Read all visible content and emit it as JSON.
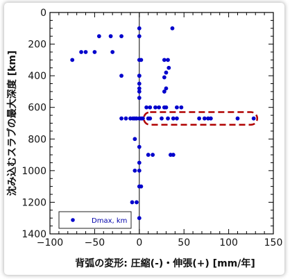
{
  "chart_data": {
    "type": "scatter",
    "xlabel": "背弧の変形: 圧縮(-)・伸張(+) [mm/年]",
    "ylabel": "沈み込むスラブの最大深度 [km]",
    "xlim": [
      -100,
      150
    ],
    "ylim": [
      0,
      1400
    ],
    "y_inverted": true,
    "xticks": [
      "−100",
      "−50",
      "0",
      "50",
      "100",
      "150"
    ],
    "yticks": [
      "0",
      "200",
      "400",
      "600",
      "800",
      "1000",
      "1200",
      "1400"
    ],
    "xtick_values": [
      -100,
      -50,
      0,
      50,
      100,
      150
    ],
    "ytick_values": [
      0,
      200,
      400,
      600,
      800,
      1000,
      1200,
      1400
    ],
    "grid": false,
    "legend": {
      "placement": "bottom-left",
      "entries": [
        "Dmax, km"
      ]
    },
    "colors": {
      "marker": "#0000cc",
      "highlight": "#b00000"
    },
    "highlight_region": {
      "x": [
        5,
        132
      ],
      "y": [
        630,
        710
      ]
    },
    "series": [
      {
        "name": "Dmax, km",
        "x": [
          0,
          37,
          -45,
          -32,
          -20,
          0,
          -65,
          -60,
          -50,
          -30,
          -75,
          28,
          32,
          0,
          2,
          33,
          30,
          0,
          -20,
          0,
          28,
          0,
          0,
          30,
          28,
          0,
          0,
          8,
          12,
          18,
          22,
          28,
          30,
          42,
          47,
          -20,
          -15,
          -10,
          -7,
          -5,
          -3,
          0,
          2,
          4,
          10,
          12,
          25,
          32,
          38,
          42,
          67,
          73,
          77,
          80,
          110,
          128,
          -5,
          0,
          10,
          15,
          35,
          38,
          0,
          -5,
          0,
          0,
          2,
          -8,
          -3,
          0
        ],
        "y": [
          100,
          100,
          150,
          150,
          150,
          150,
          250,
          250,
          250,
          250,
          300,
          300,
          300,
          300,
          300,
          350,
          380,
          400,
          400,
          400,
          410,
          450,
          480,
          480,
          500,
          500,
          540,
          600,
          600,
          600,
          600,
          600,
          600,
          600,
          600,
          670,
          670,
          670,
          670,
          670,
          670,
          670,
          670,
          670,
          670,
          670,
          670,
          670,
          670,
          670,
          670,
          670,
          670,
          670,
          670,
          670,
          800,
          850,
          900,
          900,
          900,
          900,
          950,
          1000,
          1000,
          1100,
          1100,
          1200,
          1200,
          1300
        ]
      }
    ]
  }
}
